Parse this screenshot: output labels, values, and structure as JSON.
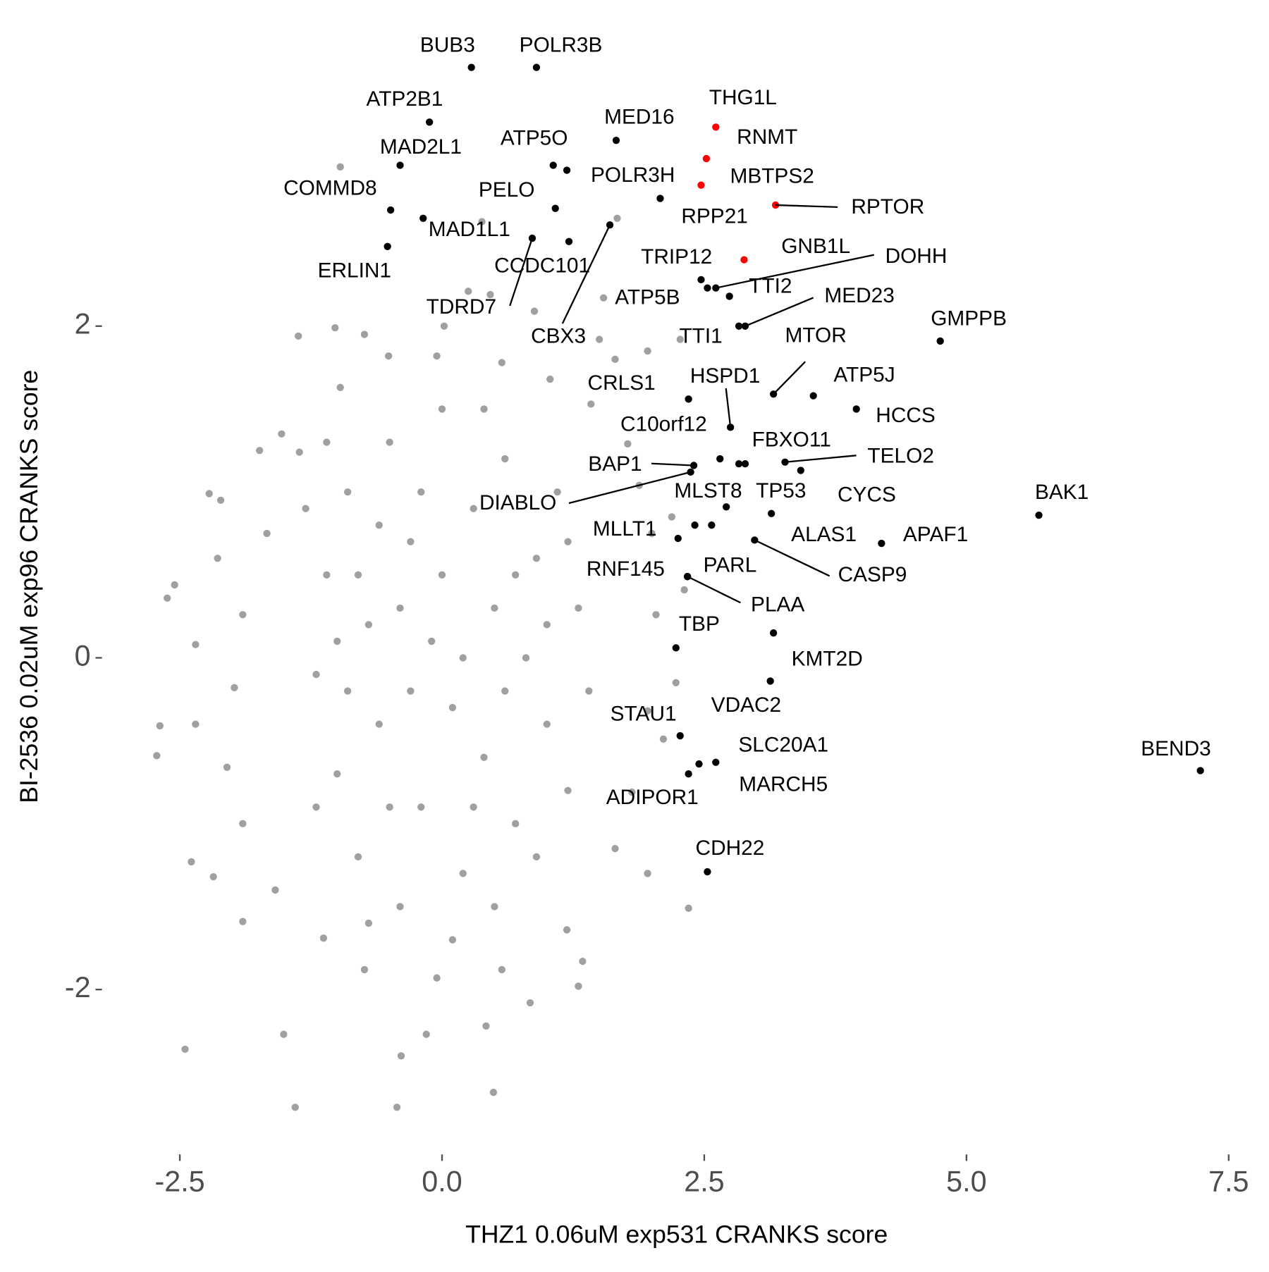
{
  "chart_data": {
    "type": "scatter",
    "x_label": "THZ1 0.06uM exp531 CRANKS score",
    "y_label": "BI-2536 0.02uM exp96 CRANKS score",
    "xlim": [
      -3.25,
      7.73
    ],
    "ylim": [
      -2.96,
      3.82
    ],
    "xticks": [
      -2.5,
      {
        "value": 0,
        "label": "0.0"
      },
      2.5,
      {
        "value": 5,
        "label": "5.0"
      },
      7.5
    ],
    "yticks": [
      -2,
      0,
      2
    ],
    "series": [
      {
        "color": "#a0a0a0",
        "x": [
          -2.72,
          -2.69,
          -2.62,
          -2.55,
          -2.45,
          -2.39,
          -2.35,
          -2.35,
          -2.22,
          -2.18,
          -2.14,
          -2.11,
          -1.9,
          -1.74,
          -1.53,
          -1.4,
          -1.37,
          -1.51,
          -0.97,
          -1.02,
          -0.74,
          -0.43,
          -0.39,
          -0.15,
          0.49,
          0.42,
          0.84,
          1.3,
          1.34,
          1.96,
          2.35,
          2.11,
          2.23,
          2.31,
          2.19,
          1.96,
          2.27,
          1.67,
          0.38,
          0.25,
          0.02,
          0.46,
          0.88,
          1.54,
          1.5,
          1.65,
          1.42,
          1.77,
          1.88,
          2.0,
          2.04,
          1.96,
          1.81,
          1.65,
          1.19,
          0.57,
          -0.05,
          -0.74,
          -1.13,
          -1.59,
          -1.9,
          -2.05,
          -1.98,
          -1.9,
          -1.67,
          -1.36,
          -0.97,
          -0.51,
          -0.05,
          0.57,
          1.03,
          -1.2,
          -1.1,
          -1.0,
          -0.9,
          -0.8,
          -0.7,
          -0.6,
          -0.5,
          -0.4,
          -0.3,
          -0.2,
          -0.1,
          0,
          0.1,
          0.2,
          0.3,
          0.4,
          0.5,
          0.6,
          0.7,
          0.8,
          0.9,
          1.0,
          1.1,
          1.2,
          1.3,
          -1.3,
          -1.2,
          -0.9,
          -0.6,
          -0.3,
          0,
          0.3,
          0.6,
          0.9,
          1.2,
          -0.8,
          -0.5,
          -0.2,
          0.1,
          0.4,
          0.7,
          1.0,
          -1.0,
          -0.4,
          0.2,
          0.5,
          -0.7,
          -1.1,
          1.4
        ],
        "values": [
          -0.59,
          -0.41,
          0.36,
          0.44,
          -2.36,
          -1.23,
          0.08,
          -0.4,
          0.99,
          -1.32,
          0.6,
          0.95,
          -1.59,
          1.25,
          1.35,
          -2.71,
          1.94,
          -2.27,
          2.96,
          1.99,
          1.95,
          -2.71,
          -2.4,
          -2.27,
          -2.62,
          -2.22,
          -2.08,
          -1.98,
          -1.83,
          -1.3,
          -1.51,
          -0.49,
          -0.15,
          0.41,
          0.85,
          1.85,
          1.92,
          2.65,
          2.63,
          2.21,
          2.0,
          2.19,
          2.09,
          2.17,
          1.92,
          1.8,
          1.53,
          1.29,
          1.04,
          0.75,
          0.26,
          -0.32,
          -0.81,
          -1.15,
          -1.64,
          -1.88,
          -1.93,
          -1.88,
          -1.69,
          -1.4,
          -1.0,
          -0.66,
          -0.18,
          0.26,
          0.75,
          1.24,
          1.63,
          1.82,
          1.82,
          1.78,
          1.68,
          -0.1,
          0.5,
          -0.7,
          1.0,
          -1.2,
          0.2,
          -0.4,
          1.3,
          -1.5,
          0.7,
          -0.9,
          0.1,
          1.5,
          -0.3,
          -1.3,
          0.9,
          -0.6,
          0.3,
          1.2,
          -1.0,
          0.0,
          0.6,
          -0.4,
          1.0,
          -0.8,
          0.3,
          0.9,
          -0.9,
          -0.2,
          0.8,
          -0.2,
          0.5,
          -0.9,
          -0.2,
          -1.2,
          0.7,
          0.5,
          -0.9,
          1.0,
          -1.7,
          1.5,
          0.5,
          0.2,
          0.1,
          0.3,
          0.0,
          -1.5,
          -1.6,
          1.3,
          -0.2
        ]
      },
      {
        "color": "#000000",
        "x": [
          0.28,
          0.9,
          -0.12,
          1.66,
          -0.4,
          1.06,
          1.19,
          -0.49,
          1.08,
          2.08,
          -0.18,
          -0.52,
          0.86,
          1.21,
          1.6,
          2.47,
          2.61,
          2.53,
          2.74,
          2.89,
          2.83,
          4.75,
          3.16,
          3.54,
          3.95,
          2.35,
          2.75,
          2.65,
          2.89,
          3.27,
          3.42,
          2.4,
          2.37,
          2.71,
          2.83,
          3.14,
          2.98,
          4.19,
          5.69,
          2.25,
          2.34,
          2.34,
          2.34,
          2.23,
          3.16,
          3.13,
          2.27,
          2.61,
          2.45,
          2.35,
          7.23,
          2.53,
          2.41,
          2.57
        ],
        "values": [
          3.56,
          3.56,
          3.23,
          3.12,
          2.97,
          2.97,
          2.94,
          2.7,
          2.71,
          2.77,
          2.65,
          2.48,
          2.53,
          2.51,
          2.61,
          2.28,
          2.23,
          2.23,
          2.18,
          2.0,
          2.0,
          1.91,
          1.59,
          1.58,
          1.5,
          1.56,
          1.39,
          1.2,
          1.17,
          1.18,
          1.13,
          1.16,
          1.12,
          0.91,
          1.17,
          0.87,
          0.71,
          0.69,
          0.86,
          0.72,
          0.49,
          0.49,
          0.49,
          0.06,
          0.15,
          -0.14,
          -0.47,
          -0.63,
          -0.64,
          -0.7,
          -0.68,
          -1.29,
          0.8,
          0.8
        ],
        "labels": [
          "BUB3",
          "POLR3B",
          "ATP2B1",
          "MED16",
          "MAD2L1",
          "ATP5O",
          "POLR3H",
          "COMMD8",
          "PELO",
          "RPP21",
          "MAD1L1",
          "ERLIN1",
          "TDRD7",
          "CCDC101",
          "CBX3",
          "TRIP12",
          "DOHH",
          "ATP5B",
          "TTI2",
          "MED23",
          "TTI1",
          "GMPPB",
          "MTOR",
          "ATP5J",
          "HCCS",
          "CRLS1",
          "HSPD1",
          "C10orf12",
          "FBXO11",
          "TELO2",
          "CYCS",
          "BAP1",
          "DIABLO",
          "MLST8",
          "TP53",
          "ALAS1",
          "CASP9",
          "APAF1",
          "BAK1",
          "MLLT1",
          "RNF145",
          "PARL",
          "PLAA",
          "TBP",
          "KMT2D",
          "VDAC2",
          "STAU1",
          "SLC20A1",
          "MARCH5",
          "ADIPOR1",
          "BEND3",
          "CDH22",
          null,
          null
        ]
      },
      {
        "color": "#ff0000",
        "x": [
          2.61,
          2.52,
          2.47,
          3.18,
          2.88
        ],
        "values": [
          3.2,
          3.01,
          2.85,
          2.73,
          2.4
        ],
        "labels": [
          "THG1L",
          "RNMT",
          "MBTPS2",
          "RPTOR",
          "GNB1L"
        ]
      }
    ]
  }
}
